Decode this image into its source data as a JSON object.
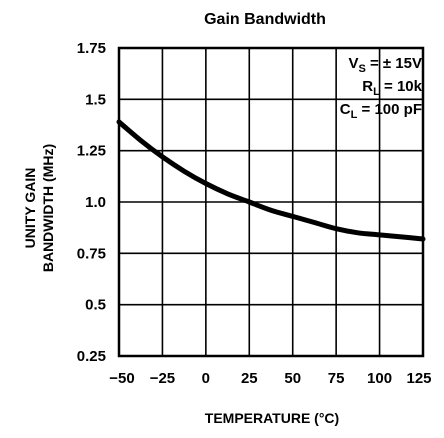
{
  "chart_data": {
    "type": "line",
    "title": "Gain Bandwidth",
    "xlabel": "TEMPERATURE (°C)",
    "ylabel_line1": "UNITY GAIN",
    "ylabel_line2": "BANDWIDTH (MHz)",
    "xlim": [
      -50,
      125
    ],
    "ylim": [
      0.25,
      1.75
    ],
    "x_ticks": [
      -50,
      -25,
      0,
      25,
      50,
      75,
      100,
      125
    ],
    "x_tick_labels": [
      "−50",
      "−25",
      "0",
      "25",
      "50",
      "75",
      "100",
      "125"
    ],
    "y_ticks": [
      0.25,
      0.5,
      0.75,
      1.0,
      1.25,
      1.5,
      1.75
    ],
    "y_tick_labels": [
      "0.25",
      "0.5",
      "0.75",
      "1.0",
      "1.25",
      "1.5",
      "1.75"
    ],
    "grid": true,
    "series": [
      {
        "x": [
          -50,
          -37.5,
          -25,
          -12.5,
          0,
          12.5,
          25,
          37.5,
          50,
          62.5,
          75,
          87.5,
          100,
          112.5,
          125
        ],
        "y": [
          1.39,
          1.3,
          1.22,
          1.15,
          1.09,
          1.04,
          1.0,
          0.96,
          0.93,
          0.9,
          0.87,
          0.85,
          0.84,
          0.83,
          0.82
        ]
      }
    ],
    "annotations": {
      "vs": {
        "main": "V",
        "sub": "S",
        "rest": " = ± 15V"
      },
      "rl": {
        "main": "R",
        "sub": "L",
        "rest": " = 10k"
      },
      "cl": {
        "main": "C",
        "sub": "L",
        "rest": " = 100 pF"
      }
    }
  }
}
